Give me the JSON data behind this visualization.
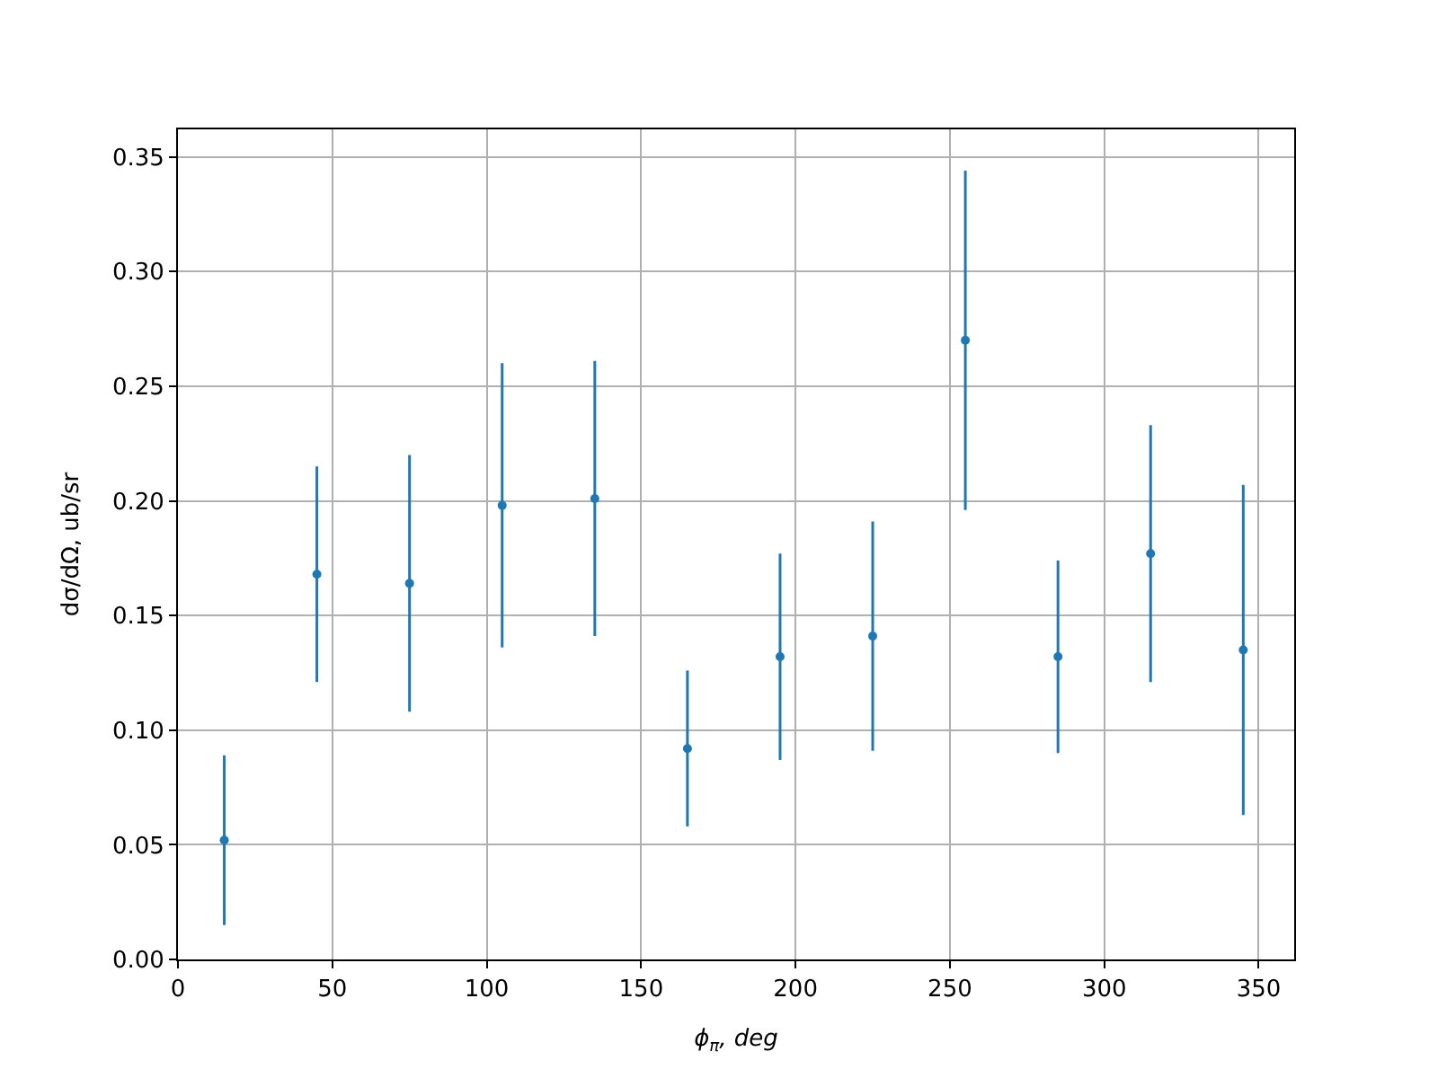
{
  "chart_data": {
    "type": "scatter",
    "xlabel": "ϕ$_{π}$, deg",
    "ylabel": "dσ/dΩ, ub/sr",
    "x": [
      15,
      45,
      75,
      105,
      135,
      165,
      195,
      225,
      255,
      285,
      315,
      345
    ],
    "series": [
      {
        "color": "#1f77b4",
        "values": [
          0.052,
          0.168,
          0.164,
          0.198,
          0.201,
          0.092,
          0.132,
          0.141,
          0.27,
          0.132,
          0.177,
          0.135
        ],
        "errors": [
          0.037,
          0.047,
          0.056,
          0.062,
          0.06,
          0.034,
          0.045,
          0.05,
          0.074,
          0.042,
          0.056,
          0.072
        ]
      }
    ],
    "xlim": [
      0,
      361.5
    ],
    "xticks": [
      0,
      50,
      100,
      150,
      200,
      250,
      300,
      350
    ],
    "ylim": [
      0,
      0.362
    ],
    "yticks": [
      {
        "value": 0,
        "label": "0.00"
      },
      {
        "value": 0.05,
        "label": "0.05"
      },
      {
        "value": 0.1,
        "label": "0.10"
      },
      {
        "value": 0.15,
        "label": "0.15"
      },
      {
        "value": 0.2,
        "label": "0.20"
      },
      {
        "value": 0.25,
        "label": "0.25"
      },
      {
        "value": 0.3,
        "label": "0.30"
      },
      {
        "value": 0.35,
        "label": "0.35"
      }
    ],
    "grid": true,
    "marker": "circle"
  }
}
